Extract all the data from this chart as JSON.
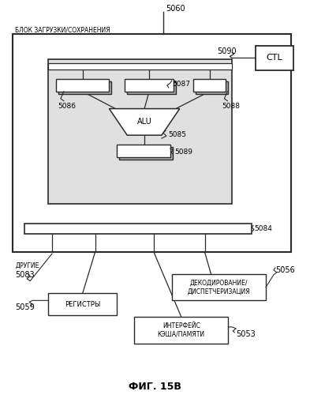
{
  "title": "ФИГ. 15В",
  "bg_color": "#ffffff",
  "label_блок": "БЛОК ЗАГРУЗКИ/СОХРАНЕНИЯ",
  "label_5060": "5060",
  "label_5090": "5090",
  "label_CTL": "CTL",
  "label_5087": "5087",
  "label_5086": "5086",
  "label_5088": "5088",
  "label_ALU": "ALU",
  "label_5085": "5085",
  "label_5089": "5089",
  "label_5084": "5084",
  "label_ДРУГИЕ": "ДРУГИЕ",
  "label_5083": "5083",
  "label_5059": "5059",
  "label_РЕГИСТРЫ": "РЕГИСТРЫ",
  "label_5056": "5056",
  "label_ДЕКОДИРОВАНИЕ": "ДЕКОДИРОВАНИЕ/\nДИСПЕТЧЕРИЗАЦИЯ",
  "label_5053": "5053",
  "label_ИНТЕРФЕЙС": "ИНТЕРФЕЙС\nКЭША/ПАМЯТИ"
}
